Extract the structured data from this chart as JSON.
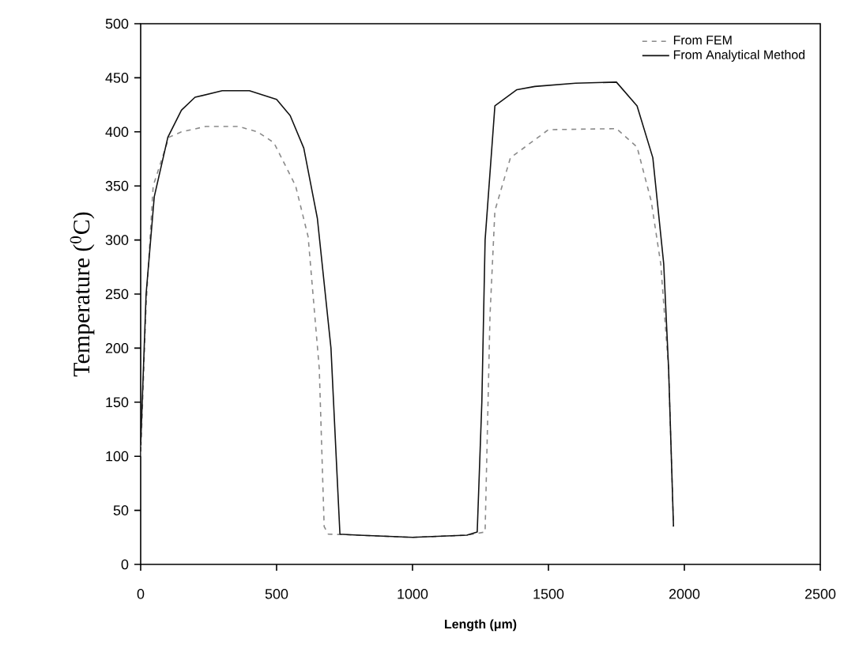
{
  "chart_data": {
    "type": "line",
    "xlabel": "Length (μm)",
    "ylabel": "Temperature ($^{0}$C)",
    "xlim": [
      0,
      2500
    ],
    "xticks": [
      0,
      500,
      1000,
      1500,
      2000,
      2500
    ],
    "ylim": [
      0,
      500
    ],
    "yticks": [
      0,
      50,
      100,
      150,
      200,
      250,
      300,
      350,
      400,
      450,
      500
    ],
    "grid": false,
    "legend": "top right",
    "marker": "none",
    "series": [
      {
        "name": "From FEM",
        "color": "#8a8a8a",
        "line_style": "dashed",
        "x": [
          0,
          20,
          46,
          104,
          150,
          240,
          360,
          430,
          490,
          570,
          616,
          657,
          675,
          690,
          800,
          1000,
          1200,
          1267,
          1285,
          1303,
          1360,
          1500,
          1750,
          1826,
          1878,
          1913,
          1942,
          1960
        ],
        "values": [
          100,
          240,
          350,
          395,
          400,
          405,
          405,
          400,
          390,
          350,
          303,
          181,
          35,
          28,
          27,
          25,
          27,
          30,
          230,
          327,
          376,
          402,
          403,
          386,
          336,
          278,
          181,
          35
        ]
      },
      {
        "name": "From Analytical Method",
        "color": "#111111",
        "line_style": "solid",
        "x": [
          0,
          20,
          50,
          100,
          150,
          200,
          300,
          400,
          500,
          550,
          600,
          650,
          700,
          721,
          733,
          800,
          1000,
          1200,
          1238,
          1255,
          1267,
          1303,
          1384,
          1450,
          1600,
          1750,
          1826,
          1884,
          1924,
          1942,
          1960
        ],
        "values": [
          110,
          250,
          340,
          395,
          420,
          432,
          438,
          438,
          430,
          415,
          385,
          320,
          200,
          90,
          28,
          27,
          25,
          27,
          30,
          150,
          300,
          424,
          439,
          442,
          445,
          446,
          424,
          376,
          278,
          181,
          35
        ]
      }
    ]
  }
}
